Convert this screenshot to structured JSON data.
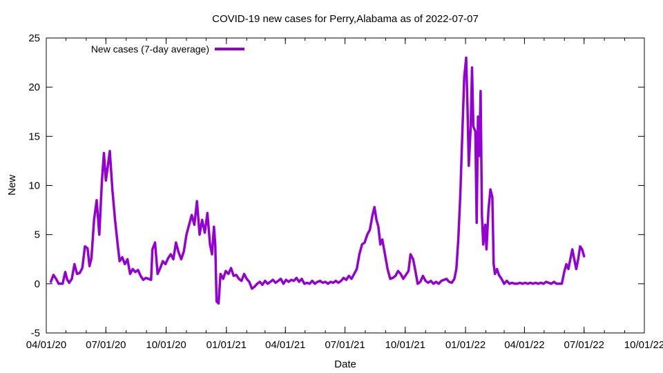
{
  "chart_data": {
    "type": "line",
    "title": "COVID-19 new cases for Perry,Alabama as of 2022-07-07",
    "xlabel": "Date",
    "ylabel": "New",
    "ylim": [
      -5,
      25
    ],
    "yticks": [
      -5,
      0,
      5,
      10,
      15,
      20,
      25
    ],
    "xlim": [
      "2020-04-01",
      "2022-10-01"
    ],
    "xticks": [
      {
        "date": "2020-04-01",
        "label": "04/01/20"
      },
      {
        "date": "2020-07-01",
        "label": "07/01/20"
      },
      {
        "date": "2020-10-01",
        "label": "10/01/20"
      },
      {
        "date": "2021-01-01",
        "label": "01/01/21"
      },
      {
        "date": "2021-04-01",
        "label": "04/01/21"
      },
      {
        "date": "2021-07-01",
        "label": "07/01/21"
      },
      {
        "date": "2021-10-01",
        "label": "10/01/21"
      },
      {
        "date": "2022-01-01",
        "label": "01/01/22"
      },
      {
        "date": "2022-04-01",
        "label": "04/01/22"
      },
      {
        "date": "2022-07-01",
        "label": "07/01/22"
      },
      {
        "date": "2022-10-01",
        "label": "10/01/22"
      }
    ],
    "grid": false,
    "legend_position": "top-left",
    "series": [
      {
        "name": "New cases (7-day average)",
        "color": "#9400d3",
        "points": [
          [
            "2020-04-08",
            0.2
          ],
          [
            "2020-04-12",
            0.9
          ],
          [
            "2020-04-16",
            0.5
          ],
          [
            "2020-04-20",
            0.0
          ],
          [
            "2020-04-26",
            0.0
          ],
          [
            "2020-04-30",
            1.2
          ],
          [
            "2020-05-03",
            0.4
          ],
          [
            "2020-05-06",
            0.1
          ],
          [
            "2020-05-10",
            0.5
          ],
          [
            "2020-05-14",
            2.0
          ],
          [
            "2020-05-18",
            1.0
          ],
          [
            "2020-05-22",
            1.1
          ],
          [
            "2020-05-26",
            1.6
          ],
          [
            "2020-05-30",
            3.8
          ],
          [
            "2020-06-03",
            3.6
          ],
          [
            "2020-06-06",
            1.8
          ],
          [
            "2020-06-09",
            2.6
          ],
          [
            "2020-06-13",
            6.5
          ],
          [
            "2020-06-17",
            8.5
          ],
          [
            "2020-06-21",
            5.0
          ],
          [
            "2020-06-25",
            10.5
          ],
          [
            "2020-06-28",
            13.3
          ],
          [
            "2020-07-01",
            10.5
          ],
          [
            "2020-07-04",
            12.0
          ],
          [
            "2020-07-07",
            13.5
          ],
          [
            "2020-07-11",
            9.5
          ],
          [
            "2020-07-15",
            6.5
          ],
          [
            "2020-07-19",
            4.0
          ],
          [
            "2020-07-22",
            2.3
          ],
          [
            "2020-07-26",
            2.7
          ],
          [
            "2020-07-30",
            2.0
          ],
          [
            "2020-08-03",
            2.5
          ],
          [
            "2020-08-07",
            1.0
          ],
          [
            "2020-08-11",
            1.5
          ],
          [
            "2020-08-15",
            1.2
          ],
          [
            "2020-08-19",
            1.4
          ],
          [
            "2020-08-23",
            0.8
          ],
          [
            "2020-08-27",
            0.4
          ],
          [
            "2020-08-31",
            0.6
          ],
          [
            "2020-09-04",
            0.5
          ],
          [
            "2020-09-08",
            0.4
          ],
          [
            "2020-09-10",
            3.5
          ],
          [
            "2020-09-14",
            4.2
          ],
          [
            "2020-09-18",
            1.0
          ],
          [
            "2020-09-22",
            1.6
          ],
          [
            "2020-09-26",
            2.3
          ],
          [
            "2020-09-30",
            2.0
          ],
          [
            "2020-10-04",
            2.6
          ],
          [
            "2020-10-08",
            3.0
          ],
          [
            "2020-10-12",
            2.5
          ],
          [
            "2020-10-16",
            4.2
          ],
          [
            "2020-10-20",
            3.2
          ],
          [
            "2020-10-24",
            2.5
          ],
          [
            "2020-10-28",
            3.3
          ],
          [
            "2020-11-01",
            5.0
          ],
          [
            "2020-11-05",
            6.0
          ],
          [
            "2020-11-09",
            7.0
          ],
          [
            "2020-11-13",
            6.0
          ],
          [
            "2020-11-17",
            8.4
          ],
          [
            "2020-11-21",
            5.0
          ],
          [
            "2020-11-25",
            6.5
          ],
          [
            "2020-11-29",
            5.2
          ],
          [
            "2020-12-03",
            7.2
          ],
          [
            "2020-12-07",
            4.0
          ],
          [
            "2020-12-10",
            3.0
          ],
          [
            "2020-12-13",
            5.8
          ],
          [
            "2020-12-15",
            4.0
          ],
          [
            "2020-12-17",
            -1.8
          ],
          [
            "2020-12-20",
            -2.0
          ],
          [
            "2020-12-23",
            1.0
          ],
          [
            "2020-12-27",
            0.5
          ],
          [
            "2020-12-31",
            1.3
          ],
          [
            "2021-01-04",
            1.0
          ],
          [
            "2021-01-08",
            1.6
          ],
          [
            "2021-01-12",
            0.8
          ],
          [
            "2021-01-16",
            0.9
          ],
          [
            "2021-01-20",
            0.5
          ],
          [
            "2021-01-24",
            0.3
          ],
          [
            "2021-01-28",
            1.0
          ],
          [
            "2021-02-01",
            0.5
          ],
          [
            "2021-02-05",
            0.2
          ],
          [
            "2021-02-09",
            -0.5
          ],
          [
            "2021-02-13",
            -0.3
          ],
          [
            "2021-02-17",
            0.0
          ],
          [
            "2021-02-21",
            0.2
          ],
          [
            "2021-02-25",
            -0.1
          ],
          [
            "2021-03-01",
            0.3
          ],
          [
            "2021-03-05",
            0.0
          ],
          [
            "2021-03-09",
            0.2
          ],
          [
            "2021-03-13",
            0.4
          ],
          [
            "2021-03-17",
            0.1
          ],
          [
            "2021-03-21",
            0.3
          ],
          [
            "2021-03-25",
            0.5
          ],
          [
            "2021-03-29",
            0.0
          ],
          [
            "2021-04-02",
            0.4
          ],
          [
            "2021-04-06",
            0.2
          ],
          [
            "2021-04-10",
            0.4
          ],
          [
            "2021-04-14",
            0.3
          ],
          [
            "2021-04-18",
            0.6
          ],
          [
            "2021-04-22",
            0.2
          ],
          [
            "2021-04-26",
            0.5
          ],
          [
            "2021-04-30",
            0.0
          ],
          [
            "2021-05-04",
            0.1
          ],
          [
            "2021-05-08",
            0.0
          ],
          [
            "2021-05-12",
            0.3
          ],
          [
            "2021-05-16",
            0.0
          ],
          [
            "2021-05-20",
            0.2
          ],
          [
            "2021-05-24",
            0.3
          ],
          [
            "2021-05-28",
            0.1
          ],
          [
            "2021-06-01",
            0.2
          ],
          [
            "2021-06-05",
            0.0
          ],
          [
            "2021-06-09",
            0.2
          ],
          [
            "2021-06-13",
            0.1
          ],
          [
            "2021-06-17",
            0.3
          ],
          [
            "2021-06-21",
            0.1
          ],
          [
            "2021-06-25",
            0.3
          ],
          [
            "2021-06-29",
            0.6
          ],
          [
            "2021-07-03",
            0.4
          ],
          [
            "2021-07-07",
            0.8
          ],
          [
            "2021-07-11",
            0.5
          ],
          [
            "2021-07-15",
            1.0
          ],
          [
            "2021-07-19",
            1.5
          ],
          [
            "2021-07-23",
            3.0
          ],
          [
            "2021-07-27",
            4.0
          ],
          [
            "2021-07-31",
            4.2
          ],
          [
            "2021-08-04",
            5.0
          ],
          [
            "2021-08-08",
            5.5
          ],
          [
            "2021-08-12",
            7.0
          ],
          [
            "2021-08-15",
            7.8
          ],
          [
            "2021-08-18",
            6.5
          ],
          [
            "2021-08-21",
            5.8
          ],
          [
            "2021-08-24",
            4.0
          ],
          [
            "2021-08-27",
            4.5
          ],
          [
            "2021-08-31",
            3.0
          ],
          [
            "2021-09-04",
            1.5
          ],
          [
            "2021-09-08",
            0.5
          ],
          [
            "2021-09-12",
            0.6
          ],
          [
            "2021-09-16",
            0.8
          ],
          [
            "2021-09-20",
            1.3
          ],
          [
            "2021-09-24",
            1.0
          ],
          [
            "2021-09-28",
            0.5
          ],
          [
            "2021-10-02",
            0.9
          ],
          [
            "2021-10-06",
            1.3
          ],
          [
            "2021-10-09",
            3.0
          ],
          [
            "2021-10-13",
            2.5
          ],
          [
            "2021-10-16",
            1.5
          ],
          [
            "2021-10-20",
            0.0
          ],
          [
            "2021-10-24",
            0.2
          ],
          [
            "2021-10-28",
            0.8
          ],
          [
            "2021-11-01",
            0.3
          ],
          [
            "2021-11-05",
            0.1
          ],
          [
            "2021-11-09",
            0.3
          ],
          [
            "2021-11-13",
            0.0
          ],
          [
            "2021-11-17",
            0.2
          ],
          [
            "2021-11-21",
            0.0
          ],
          [
            "2021-11-25",
            0.3
          ],
          [
            "2021-11-29",
            0.4
          ],
          [
            "2021-12-03",
            0.5
          ],
          [
            "2021-12-07",
            0.2
          ],
          [
            "2021-12-11",
            0.1
          ],
          [
            "2021-12-15",
            0.5
          ],
          [
            "2021-12-18",
            1.5
          ],
          [
            "2021-12-21",
            4.5
          ],
          [
            "2021-12-24",
            9.0
          ],
          [
            "2021-12-27",
            15.0
          ],
          [
            "2021-12-30",
            21.0
          ],
          [
            "2022-01-02",
            23.0
          ],
          [
            "2022-01-04",
            18.0
          ],
          [
            "2022-01-06",
            12.0
          ],
          [
            "2022-01-09",
            16.0
          ],
          [
            "2022-01-11",
            22.0
          ],
          [
            "2022-01-13",
            16.0
          ],
          [
            "2022-01-16",
            15.5
          ],
          [
            "2022-01-18",
            6.2
          ],
          [
            "2022-01-20",
            17.0
          ],
          [
            "2022-01-22",
            13.0
          ],
          [
            "2022-01-24",
            19.6
          ],
          [
            "2022-01-26",
            7.0
          ],
          [
            "2022-01-28",
            4.0
          ],
          [
            "2022-01-31",
            6.0
          ],
          [
            "2022-02-02",
            3.5
          ],
          [
            "2022-02-05",
            7.5
          ],
          [
            "2022-02-08",
            9.6
          ],
          [
            "2022-02-11",
            8.8
          ],
          [
            "2022-02-13",
            2.0
          ],
          [
            "2022-02-15",
            1.0
          ],
          [
            "2022-02-18",
            1.5
          ],
          [
            "2022-02-21",
            0.9
          ],
          [
            "2022-02-25",
            0.5
          ],
          [
            "2022-03-01",
            0.0
          ],
          [
            "2022-03-05",
            0.3
          ],
          [
            "2022-03-09",
            0.0
          ],
          [
            "2022-03-13",
            0.1
          ],
          [
            "2022-03-17",
            0.0
          ],
          [
            "2022-03-21",
            0.0
          ],
          [
            "2022-03-25",
            0.1
          ],
          [
            "2022-03-29",
            0.0
          ],
          [
            "2022-04-02",
            0.1
          ],
          [
            "2022-04-06",
            0.0
          ],
          [
            "2022-04-10",
            0.1
          ],
          [
            "2022-04-14",
            0.0
          ],
          [
            "2022-04-18",
            0.1
          ],
          [
            "2022-04-22",
            0.0
          ],
          [
            "2022-04-26",
            0.1
          ],
          [
            "2022-04-30",
            0.0
          ],
          [
            "2022-05-04",
            0.2
          ],
          [
            "2022-05-08",
            0.1
          ],
          [
            "2022-05-12",
            0.0
          ],
          [
            "2022-05-16",
            0.2
          ],
          [
            "2022-05-20",
            0.0
          ],
          [
            "2022-05-24",
            0.0
          ],
          [
            "2022-05-28",
            0.0
          ],
          [
            "2022-06-01",
            1.3
          ],
          [
            "2022-06-04",
            2.0
          ],
          [
            "2022-06-07",
            1.5
          ],
          [
            "2022-06-10",
            2.5
          ],
          [
            "2022-06-13",
            3.5
          ],
          [
            "2022-06-16",
            2.5
          ],
          [
            "2022-06-19",
            1.5
          ],
          [
            "2022-06-22",
            2.5
          ],
          [
            "2022-06-25",
            3.8
          ],
          [
            "2022-06-28",
            3.5
          ],
          [
            "2022-07-01",
            2.8
          ]
        ]
      }
    ]
  }
}
